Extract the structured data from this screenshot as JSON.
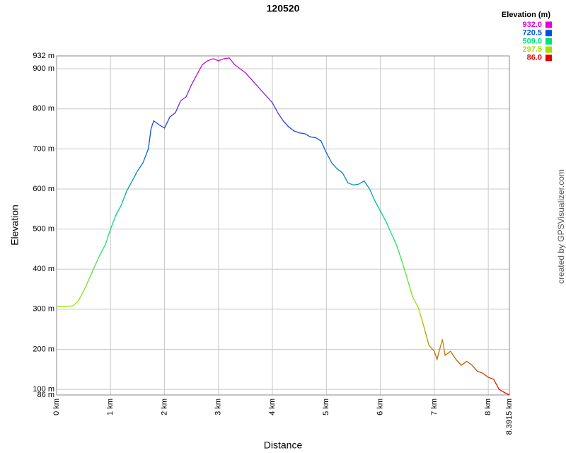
{
  "chart_data": {
    "type": "line",
    "title": "120520",
    "x_label": "Distance",
    "y_label": "Elevation",
    "credit": "created by GPSVisualizer.com",
    "legend_title": "Elevation (m)",
    "legend": "top-right",
    "grid": true,
    "color_scale": [
      {
        "value": 932.0,
        "label": "932.0",
        "color": "#e000e0"
      },
      {
        "value": 720.5,
        "label": "720.5",
        "color": "#0050e0"
      },
      {
        "value": 509.0,
        "label": "509.0",
        "color": "#00e080"
      },
      {
        "value": 297.5,
        "label": "297.5",
        "color": "#a0e000"
      },
      {
        "value": 86.0,
        "label": "86.0",
        "color": "#e00000"
      }
    ],
    "xlim": [
      0,
      8.3915
    ],
    "ylim": [
      86,
      932
    ],
    "xticks": [
      {
        "value": 0,
        "label": "0 km"
      },
      {
        "value": 1,
        "label": "1 km"
      },
      {
        "value": 2,
        "label": "2 km"
      },
      {
        "value": 3,
        "label": "3 km"
      },
      {
        "value": 4,
        "label": "4 km"
      },
      {
        "value": 5,
        "label": "5 km"
      },
      {
        "value": 6,
        "label": "6 km"
      },
      {
        "value": 7,
        "label": "7 km"
      },
      {
        "value": 8,
        "label": "8 km"
      },
      {
        "value": 8.3915,
        "label": "8.3915 km"
      }
    ],
    "yticks": [
      {
        "value": 86,
        "label": "86 m"
      },
      {
        "value": 100,
        "label": "100 m"
      },
      {
        "value": 200,
        "label": "200 m"
      },
      {
        "value": 300,
        "label": "300 m"
      },
      {
        "value": 400,
        "label": "400 m"
      },
      {
        "value": 500,
        "label": "500 m"
      },
      {
        "value": 600,
        "label": "600 m"
      },
      {
        "value": 700,
        "label": "700 m"
      },
      {
        "value": 800,
        "label": "800 m"
      },
      {
        "value": 900,
        "label": "900 m"
      },
      {
        "value": 932,
        "label": "932 m"
      }
    ],
    "x": [
      0,
      0.1,
      0.2,
      0.3,
      0.4,
      0.5,
      0.6,
      0.7,
      0.8,
      0.9,
      1.0,
      1.1,
      1.2,
      1.3,
      1.4,
      1.5,
      1.6,
      1.7,
      1.75,
      1.8,
      1.9,
      2.0,
      2.1,
      2.2,
      2.3,
      2.4,
      2.5,
      2.6,
      2.7,
      2.8,
      2.9,
      3.0,
      3.1,
      3.2,
      3.3,
      3.4,
      3.5,
      3.6,
      3.7,
      3.8,
      3.9,
      4.0,
      4.1,
      4.2,
      4.3,
      4.4,
      4.5,
      4.6,
      4.7,
      4.8,
      4.9,
      5.0,
      5.1,
      5.2,
      5.3,
      5.4,
      5.5,
      5.6,
      5.7,
      5.8,
      5.9,
      6.0,
      6.1,
      6.2,
      6.3,
      6.4,
      6.5,
      6.6,
      6.7,
      6.8,
      6.9,
      7.0,
      7.05,
      7.1,
      7.15,
      7.2,
      7.3,
      7.4,
      7.5,
      7.6,
      7.7,
      7.8,
      7.9,
      8.0,
      8.1,
      8.2,
      8.3,
      8.3915
    ],
    "values": [
      308,
      306,
      307,
      308,
      320,
      345,
      375,
      405,
      435,
      460,
      500,
      535,
      560,
      595,
      620,
      645,
      665,
      700,
      750,
      770,
      760,
      752,
      780,
      790,
      820,
      830,
      860,
      885,
      910,
      920,
      925,
      920,
      925,
      927,
      910,
      900,
      890,
      875,
      860,
      845,
      830,
      815,
      790,
      770,
      755,
      745,
      740,
      738,
      730,
      728,
      720,
      690,
      665,
      650,
      640,
      615,
      610,
      612,
      620,
      600,
      570,
      545,
      520,
      490,
      460,
      420,
      375,
      330,
      305,
      260,
      210,
      195,
      175,
      200,
      225,
      185,
      195,
      175,
      160,
      170,
      160,
      145,
      140,
      130,
      125,
      100,
      92,
      86
    ]
  }
}
